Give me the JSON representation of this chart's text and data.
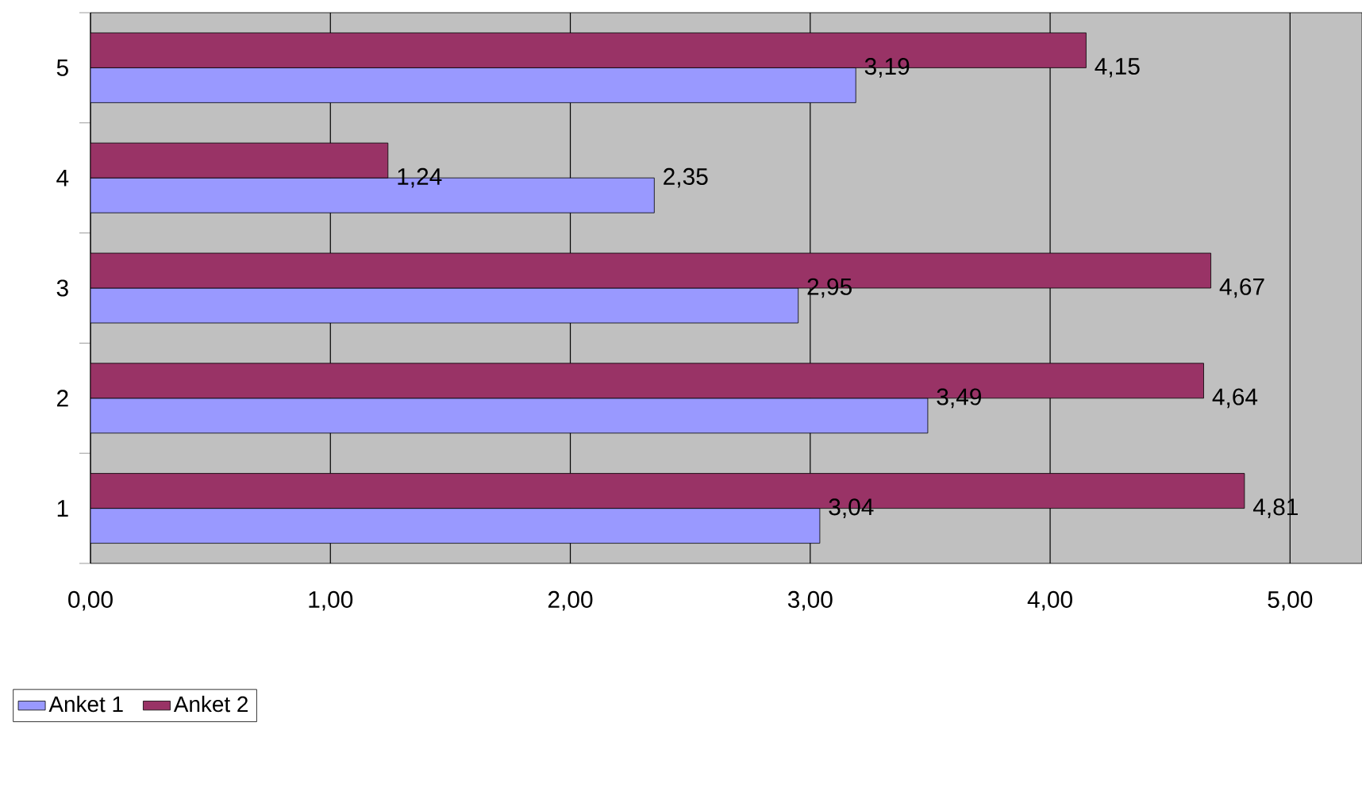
{
  "chart_data": {
    "type": "bar",
    "orientation": "horizontal",
    "categories": [
      "5",
      "4",
      "3",
      "2",
      "1"
    ],
    "series": [
      {
        "name": "Anket 1",
        "color": "#9999ff",
        "values": [
          3.19,
          2.35,
          2.95,
          3.49,
          3.04
        ],
        "value_labels": [
          "3,19",
          "2,35",
          "2,95",
          "3,49",
          "3,04"
        ]
      },
      {
        "name": "Anket 2",
        "color": "#993366",
        "values": [
          4.15,
          1.24,
          4.67,
          4.64,
          4.81
        ],
        "value_labels": [
          "4,15",
          "1,24",
          "4,67",
          "4,64",
          "4,81"
        ]
      }
    ],
    "xlim": [
      0,
      5.3
    ],
    "xticks": [
      {
        "value": 0,
        "label": "0,00"
      },
      {
        "value": 1,
        "label": "1,00"
      },
      {
        "value": 2,
        "label": "2,00"
      },
      {
        "value": 3,
        "label": "3,00"
      },
      {
        "value": 4,
        "label": "4,00"
      },
      {
        "value": 5,
        "label": "5,00"
      }
    ],
    "grid": "x",
    "legend": "bottom left"
  }
}
